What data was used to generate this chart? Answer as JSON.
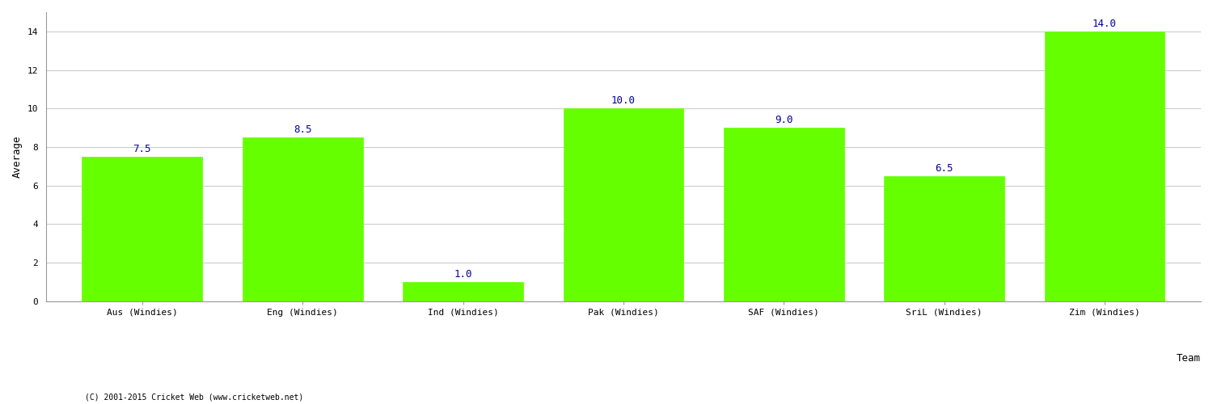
{
  "categories": [
    "Aus (Windies)",
    "Eng (Windies)",
    "Ind (Windies)",
    "Pak (Windies)",
    "SAF (Windies)",
    "SriL (Windies)",
    "Zim (Windies)"
  ],
  "values": [
    7.5,
    8.5,
    1.0,
    10.0,
    9.0,
    6.5,
    14.0
  ],
  "bar_color": "#66ff00",
  "bar_edgecolor": "#66ff00",
  "ylabel": "Average",
  "xlabel": "Team",
  "ylim": [
    0,
    15
  ],
  "yticks": [
    0,
    2,
    4,
    6,
    8,
    10,
    12,
    14
  ],
  "label_color": "#000099",
  "grid_color": "#cccccc",
  "bg_color": "#ffffff",
  "label_fontsize": 9,
  "axis_label_fontsize": 9,
  "tick_fontsize": 8,
  "footnote": "(C) 2001-2015 Cricket Web (www.cricketweb.net)"
}
